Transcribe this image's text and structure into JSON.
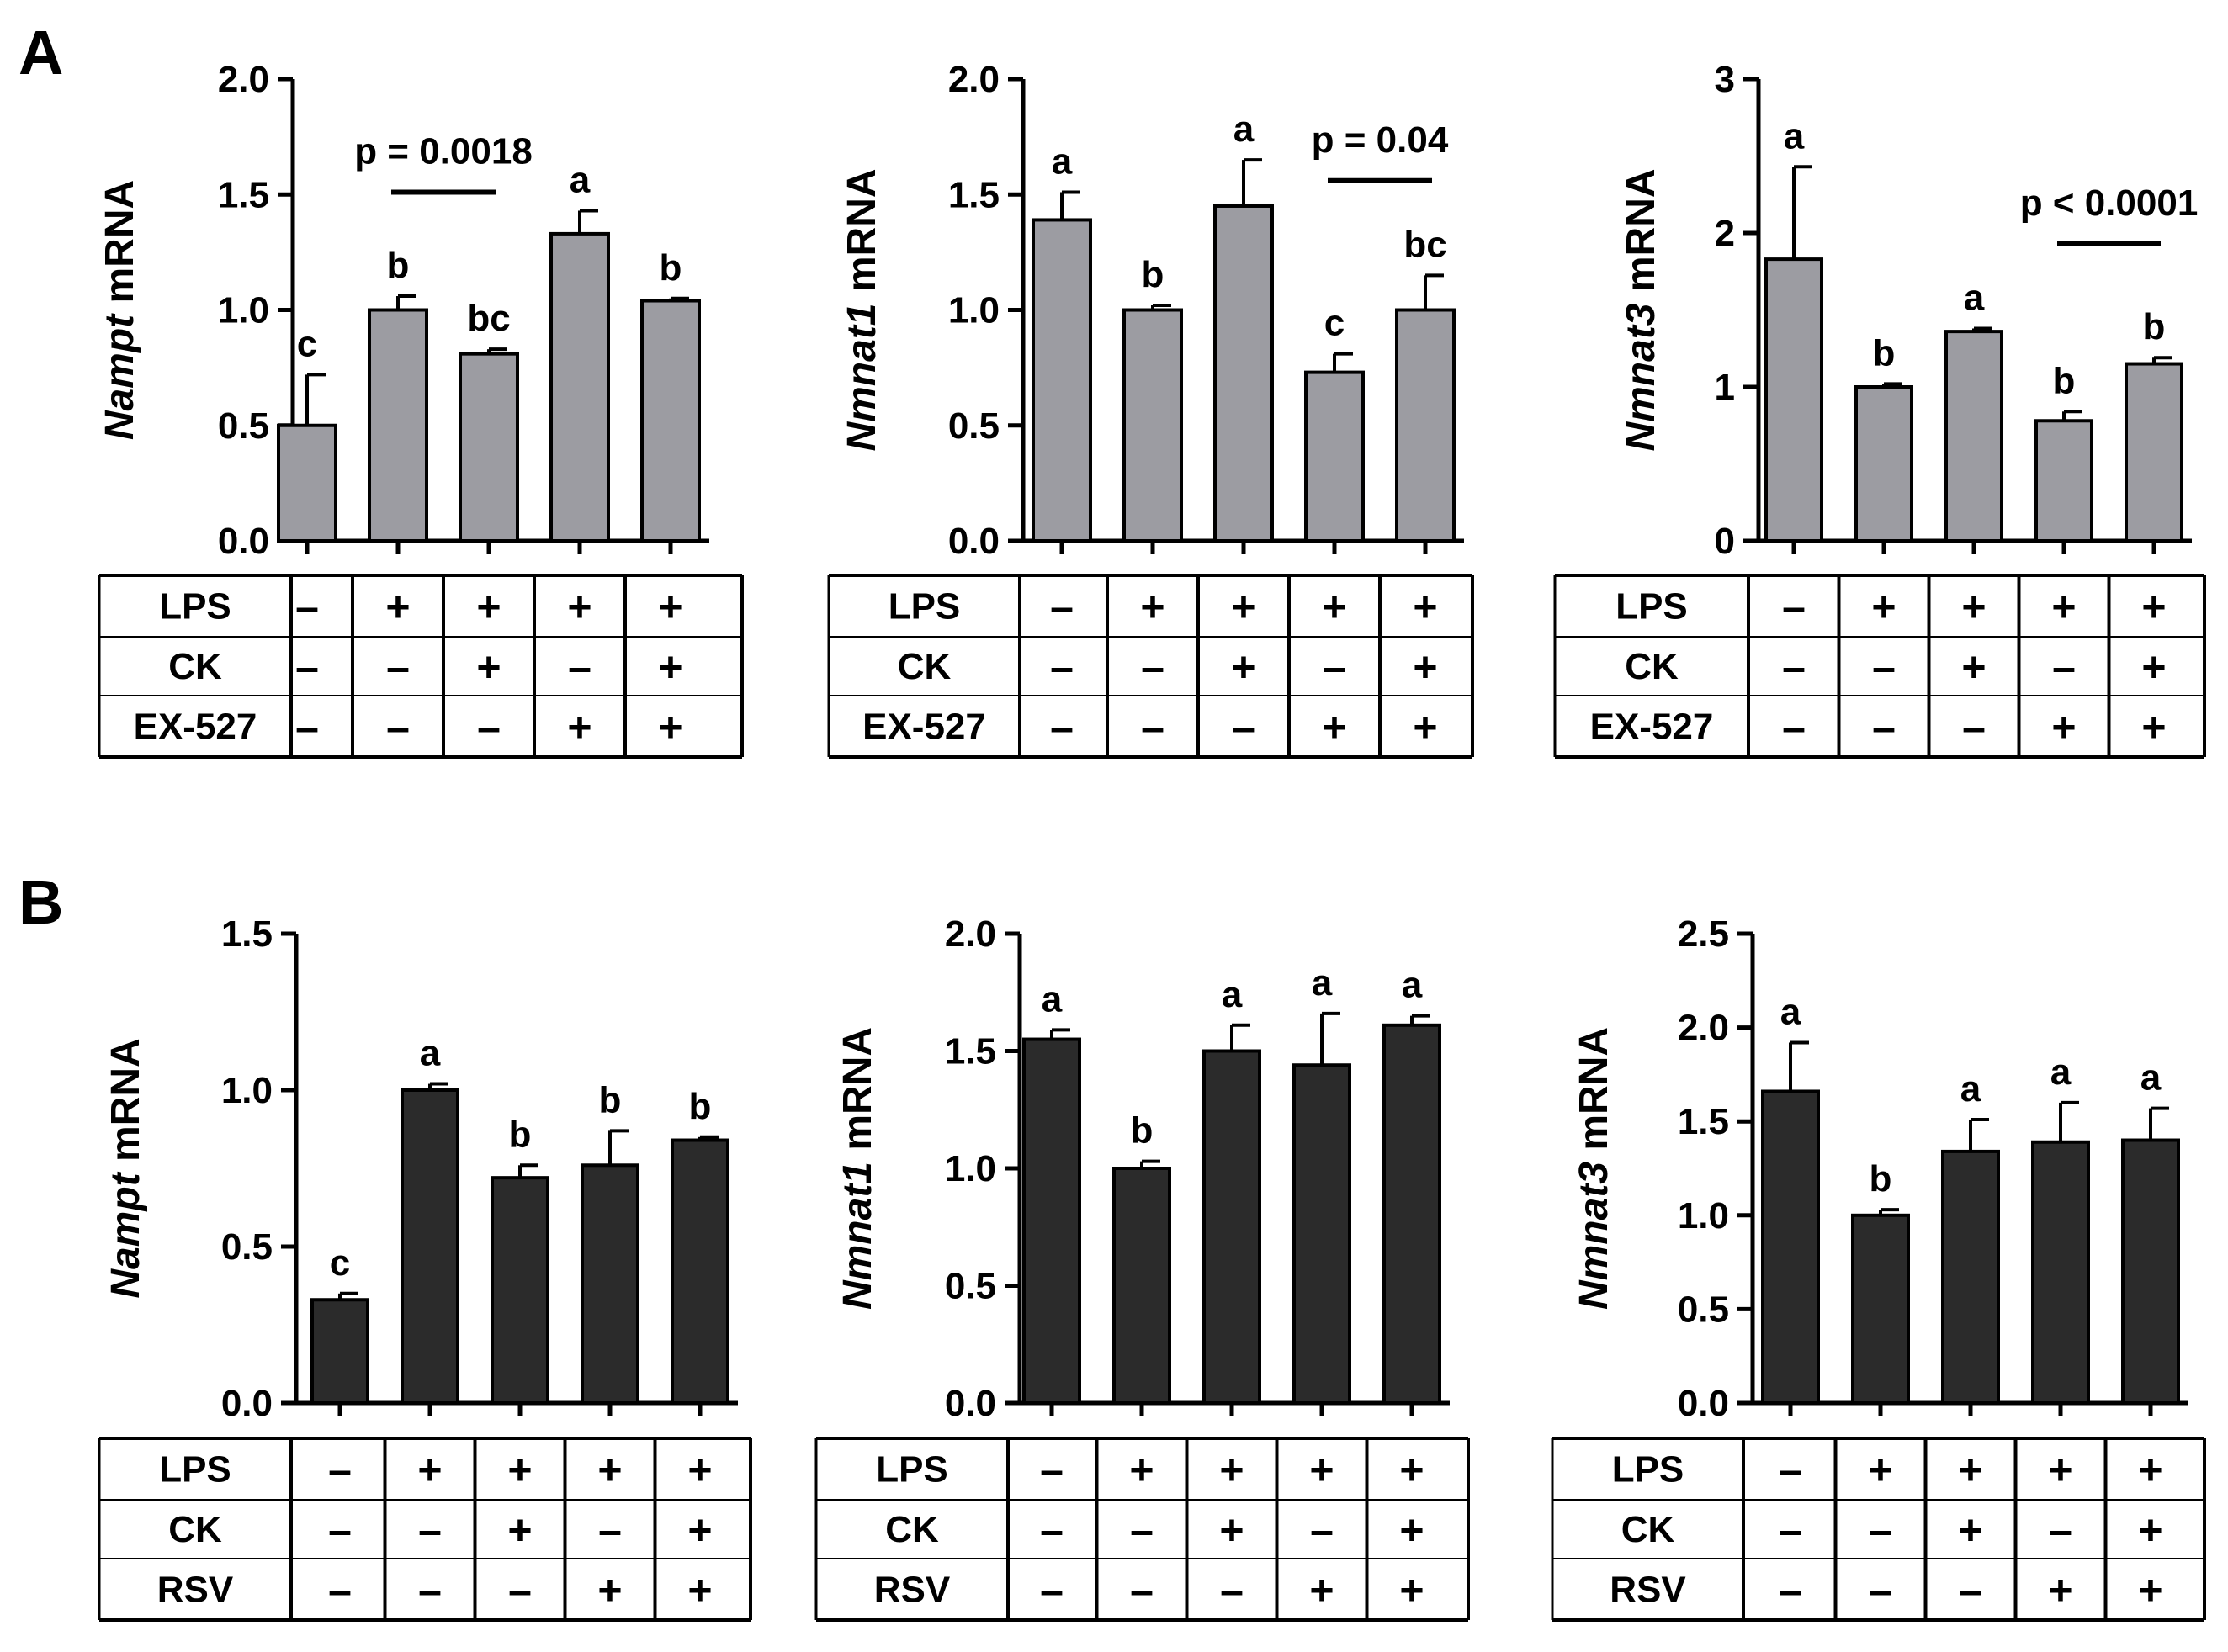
{
  "panel_labels": [
    "A",
    "B"
  ],
  "colors": {
    "panel_A_bar": "#9c9ca2",
    "panel_B_bar": "#2b2b2b",
    "axis": "#000000"
  },
  "chart_data": [
    {
      "type": "bar",
      "panel": "A",
      "ylabel_gene": "Nampt",
      "ylabel_suffix": " mRNA",
      "ylim": [
        0,
        2.0
      ],
      "ticks": [
        0.0,
        0.5,
        1.0,
        1.5,
        2.0
      ],
      "tick_labels": [
        "0.0",
        "0.5",
        "1.0",
        "1.5",
        "2.0"
      ],
      "values": [
        0.5,
        1.0,
        0.81,
        1.33,
        1.04
      ],
      "errors": [
        0.22,
        0.06,
        0.02,
        0.1,
        0.01
      ],
      "letters": [
        "c",
        "b",
        "bc",
        "a",
        "b"
      ],
      "pvalue": {
        "text": "p = 0.0018",
        "from": 1,
        "to": 2,
        "y": 1.51
      },
      "table": [
        {
          "label": "LPS",
          "signs": [
            "–",
            "+",
            "+",
            "+",
            "+"
          ]
        },
        {
          "label": "CK",
          "signs": [
            "–",
            "–",
            "+",
            "–",
            "+"
          ]
        },
        {
          "label": "EX-527",
          "signs": [
            "–",
            "–",
            "–",
            "+",
            "+"
          ]
        }
      ]
    },
    {
      "type": "bar",
      "panel": "A",
      "ylabel_gene": "Nmnat1",
      "ylabel_suffix": " mRNA",
      "ylim": [
        0,
        2.0
      ],
      "ticks": [
        0.0,
        0.5,
        1.0,
        1.5,
        2.0
      ],
      "tick_labels": [
        "0.0",
        "0.5",
        "1.0",
        "1.5",
        "2.0"
      ],
      "values": [
        1.39,
        1.0,
        1.45,
        0.73,
        1.0
      ],
      "errors": [
        0.12,
        0.02,
        0.2,
        0.08,
        0.15
      ],
      "letters": [
        "a",
        "b",
        "a",
        "c",
        "bc"
      ],
      "pvalue": {
        "text": "p = 0.04",
        "from": 3,
        "to": 4,
        "y": 1.56
      },
      "table": [
        {
          "label": "LPS",
          "signs": [
            "–",
            "+",
            "+",
            "+",
            "+"
          ]
        },
        {
          "label": "CK",
          "signs": [
            "–",
            "–",
            "+",
            "–",
            "+"
          ]
        },
        {
          "label": "EX-527",
          "signs": [
            "–",
            "–",
            "–",
            "+",
            "+"
          ]
        }
      ]
    },
    {
      "type": "bar",
      "panel": "A",
      "ylabel_gene": "Nmnat3",
      "ylabel_suffix": " mRNA",
      "ylim": [
        0,
        3
      ],
      "ticks": [
        0,
        1,
        2,
        3
      ],
      "tick_labels": [
        "0",
        "1",
        "2",
        "3"
      ],
      "values": [
        1.83,
        1.0,
        1.36,
        0.78,
        1.15
      ],
      "errors": [
        0.6,
        0.02,
        0.02,
        0.06,
        0.04
      ],
      "letters": [
        "a",
        "b",
        "a",
        "b",
        "b"
      ],
      "pvalue": {
        "text": "p < 0.0001",
        "from": 3,
        "to": 4,
        "y": 1.93
      },
      "table": [
        {
          "label": "LPS",
          "signs": [
            "–",
            "+",
            "+",
            "+",
            "+"
          ]
        },
        {
          "label": "CK",
          "signs": [
            "–",
            "–",
            "+",
            "–",
            "+"
          ]
        },
        {
          "label": "EX-527",
          "signs": [
            "–",
            "–",
            "–",
            "+",
            "+"
          ]
        }
      ]
    },
    {
      "type": "bar",
      "panel": "B",
      "ylabel_gene": "Nampt",
      "ylabel_suffix": " mRNA",
      "ylim": [
        0,
        1.5
      ],
      "ticks": [
        0.0,
        0.5,
        1.0,
        1.5
      ],
      "tick_labels": [
        "0.0",
        "0.5",
        "1.0",
        "1.5"
      ],
      "values": [
        0.33,
        1.0,
        0.72,
        0.76,
        0.84
      ],
      "errors": [
        0.02,
        0.02,
        0.04,
        0.11,
        0.01
      ],
      "letters": [
        "c",
        "a",
        "b",
        "b",
        "b"
      ],
      "pvalue": null,
      "table": [
        {
          "label": "LPS",
          "signs": [
            "–",
            "+",
            "+",
            "+",
            "+"
          ]
        },
        {
          "label": "CK",
          "signs": [
            "–",
            "–",
            "+",
            "–",
            "+"
          ]
        },
        {
          "label": "RSV",
          "signs": [
            "–",
            "–",
            "–",
            "+",
            "+"
          ]
        }
      ]
    },
    {
      "type": "bar",
      "panel": "B",
      "ylabel_gene": "Nmnat1",
      "ylabel_suffix": " mRNA",
      "ylim": [
        0,
        2.0
      ],
      "ticks": [
        0.0,
        0.5,
        1.0,
        1.5,
        2.0
      ],
      "tick_labels": [
        "0.0",
        "0.5",
        "1.0",
        "1.5",
        "2.0"
      ],
      "values": [
        1.55,
        1.0,
        1.5,
        1.44,
        1.61
      ],
      "errors": [
        0.04,
        0.03,
        0.11,
        0.22,
        0.04
      ],
      "letters": [
        "a",
        "b",
        "a",
        "a",
        "a"
      ],
      "pvalue": null,
      "table": [
        {
          "label": "LPS",
          "signs": [
            "–",
            "+",
            "+",
            "+",
            "+"
          ]
        },
        {
          "label": "CK",
          "signs": [
            "–",
            "–",
            "+",
            "–",
            "+"
          ]
        },
        {
          "label": "RSV",
          "signs": [
            "–",
            "–",
            "–",
            "+",
            "+"
          ]
        }
      ]
    },
    {
      "type": "bar",
      "panel": "B",
      "ylabel_gene": "Nmnat3",
      "ylabel_suffix": " mRNA",
      "ylim": [
        0,
        2.5
      ],
      "ticks": [
        0.0,
        0.5,
        1.0,
        1.5,
        2.0,
        2.5
      ],
      "tick_labels": [
        "0.0",
        "0.5",
        "1.0",
        "1.5",
        "2.0",
        "2.5"
      ],
      "values": [
        1.66,
        1.0,
        1.34,
        1.39,
        1.4
      ],
      "errors": [
        0.26,
        0.03,
        0.17,
        0.21,
        0.17
      ],
      "letters": [
        "a",
        "b",
        "a",
        "a",
        "a"
      ],
      "pvalue": null,
      "table": [
        {
          "label": "LPS",
          "signs": [
            "–",
            "+",
            "+",
            "+",
            "+"
          ]
        },
        {
          "label": "CK",
          "signs": [
            "–",
            "–",
            "+",
            "–",
            "+"
          ]
        },
        {
          "label": "RSV",
          "signs": [
            "–",
            "–",
            "–",
            "+",
            "+"
          ]
        }
      ]
    }
  ]
}
